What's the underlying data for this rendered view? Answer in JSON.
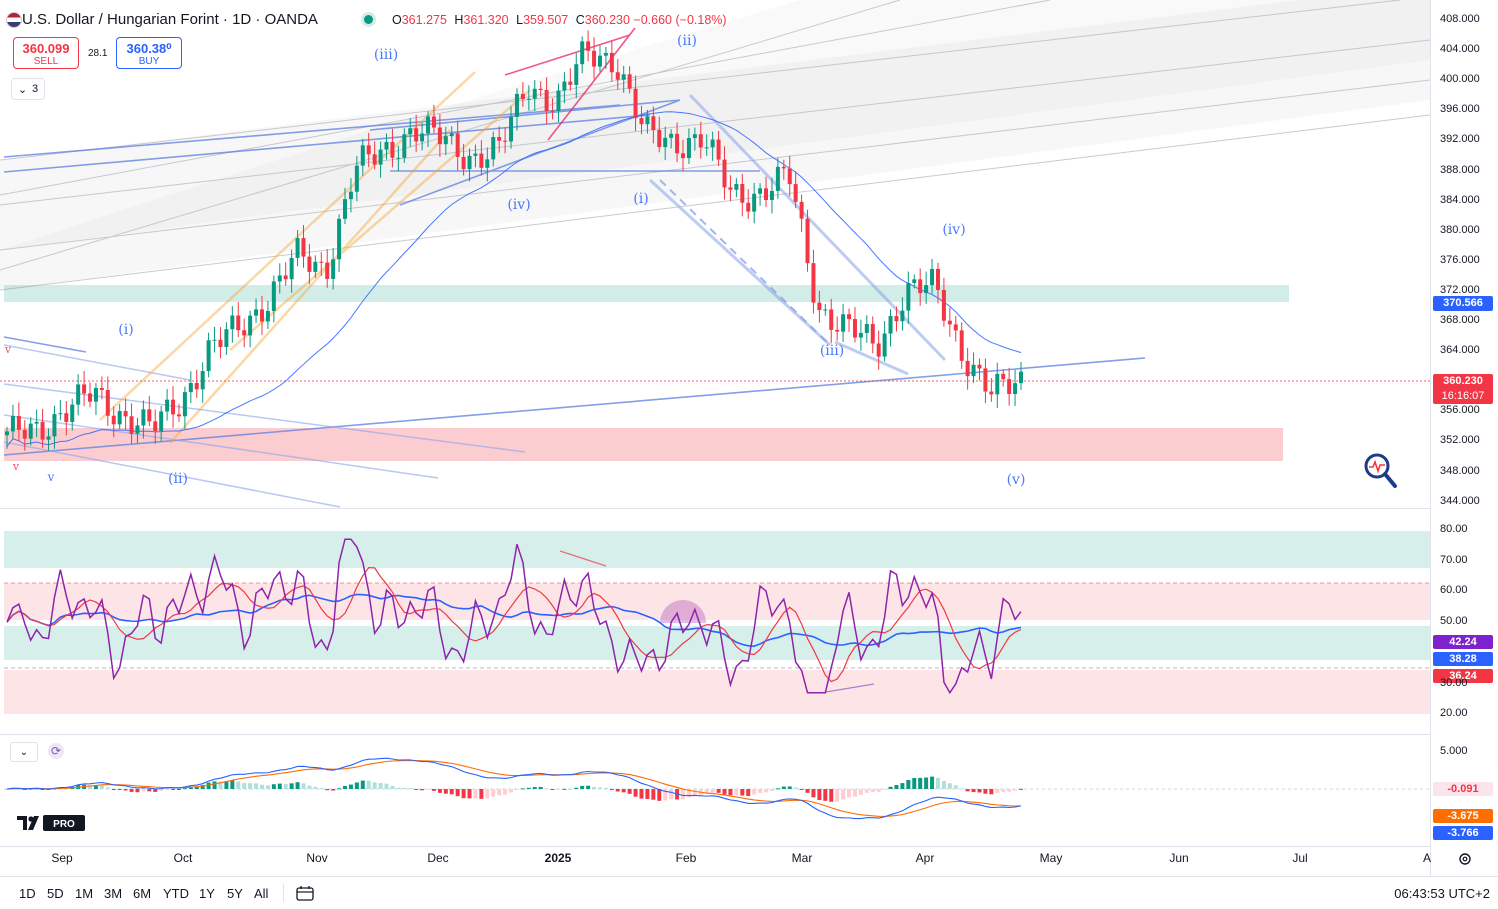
{
  "header": {
    "symbol_title": "U.S. Dollar / Hungarian Forint · 1D · OANDA",
    "ohlc": {
      "o_key": "O",
      "o_val": "361.275",
      "h_key": "H",
      "h_val": "361.320",
      "l_key": "L",
      "l_val": "359.507",
      "c_key": "C",
      "c_val": "360.230 −0.660 (−0.18%)"
    }
  },
  "trade": {
    "sell_price": "360.099",
    "sell_label": "SELL",
    "spread": "28.1",
    "buy_price": "360.38⁰",
    "buy_label": "BUY"
  },
  "legend": {
    "count": "3"
  },
  "price_axis": {
    "labels": [
      "408.000",
      "404.000",
      "400.000",
      "396.000",
      "392.000",
      "388.000",
      "384.000",
      "380.000",
      "376.000",
      "372.000",
      "368.000",
      "364.000",
      "356.000",
      "352.000",
      "348.000",
      "344.000"
    ],
    "tags": {
      "ma": "370.566",
      "last": "360.230",
      "countdown": "16:16:07"
    }
  },
  "rsi_axis": {
    "labels": [
      "80.00",
      "70.00",
      "60.00",
      "50.00",
      "30.00",
      "20.00"
    ],
    "tags": {
      "rsi": "42.24",
      "ma": "38.28",
      "other": "36.24"
    }
  },
  "macd_axis": {
    "labels": [
      "5.000"
    ],
    "tags": {
      "hist": "-0.091",
      "signal": "-3.675",
      "macd": "-3.766"
    }
  },
  "time_axis": [
    "Sep",
    "Oct",
    "Nov",
    "Dec",
    "2025",
    "Feb",
    "Mar",
    "Apr",
    "May",
    "Jun",
    "Jul",
    "A"
  ],
  "waves": {
    "w_iii_top": "(iii)",
    "w_ii_top": "(ii)",
    "w_iv_mid": "(iv)",
    "w_i_mid": "(i)",
    "w_iv_right": "(iv)",
    "w_iii_right": "(iii)",
    "w_i_left": "(i)",
    "w_ii_left": "(ii)",
    "w_v_right": "(v)",
    "w_v_left": "v",
    "red_v1": "v",
    "red_v2": "v"
  },
  "ranges": [
    "1D",
    "5D",
    "1M",
    "3M",
    "6M",
    "YTD",
    "1Y",
    "5Y",
    "All"
  ],
  "clock": "06:43:53 UTC+2",
  "colors": {
    "up": "#089981",
    "down": "#f23645",
    "accent": "#2962ff",
    "rsi": "#7e22ce",
    "rsi_ma": "#f23645",
    "rsi_ma2": "#2962ff"
  },
  "chart_data": {
    "type": "line",
    "title": "U.S. Dollar / Hungarian Forint · 1D · OANDA",
    "ylim": [
      344,
      408
    ],
    "close_series": [
      {
        "date": "2024-08-20",
        "close": 352.4
      },
      {
        "date": "2024-08-27",
        "close": 353.8
      },
      {
        "date": "2024-09-03",
        "close": 356.0
      },
      {
        "date": "2024-09-10",
        "close": 358.2
      },
      {
        "date": "2024-09-17",
        "close": 355.6
      },
      {
        "date": "2024-09-24",
        "close": 353.4
      },
      {
        "date": "2024-10-01",
        "close": 357.6
      },
      {
        "date": "2024-10-08",
        "close": 364.0
      },
      {
        "date": "2024-10-15",
        "close": 367.0
      },
      {
        "date": "2024-10-22",
        "close": 371.0
      },
      {
        "date": "2024-10-29",
        "close": 376.4
      },
      {
        "date": "2024-11-05",
        "close": 375.0
      },
      {
        "date": "2024-11-12",
        "close": 388.0
      },
      {
        "date": "2024-11-19",
        "close": 390.4
      },
      {
        "date": "2024-11-26",
        "close": 393.6
      },
      {
        "date": "2024-12-03",
        "close": 392.0
      },
      {
        "date": "2024-12-10",
        "close": 390.0
      },
      {
        "date": "2024-12-17",
        "close": 390.6
      },
      {
        "date": "2024-12-24",
        "close": 399.6
      },
      {
        "date": "2024-12-31",
        "close": 397.0
      },
      {
        "date": "2025-01-07",
        "close": 403.6
      },
      {
        "date": "2025-01-14",
        "close": 403.0
      },
      {
        "date": "2025-01-21",
        "close": 392.6
      },
      {
        "date": "2025-01-28",
        "close": 392.0
      },
      {
        "date": "2025-02-04",
        "close": 392.2
      },
      {
        "date": "2025-02-11",
        "close": 384.8
      },
      {
        "date": "2025-02-18",
        "close": 385.2
      },
      {
        "date": "2025-02-25",
        "close": 387.0
      },
      {
        "date": "2025-03-04",
        "close": 370.0
      },
      {
        "date": "2025-03-11",
        "close": 366.8
      },
      {
        "date": "2025-03-18",
        "close": 364.6
      },
      {
        "date": "2025-03-25",
        "close": 372.0
      },
      {
        "date": "2025-04-01",
        "close": 372.4
      },
      {
        "date": "2025-04-08",
        "close": 364.0
      },
      {
        "date": "2025-04-15",
        "close": 358.0
      },
      {
        "date": "2025-04-22",
        "close": 360.23
      }
    ],
    "xlabel": "",
    "ylabel": ""
  }
}
